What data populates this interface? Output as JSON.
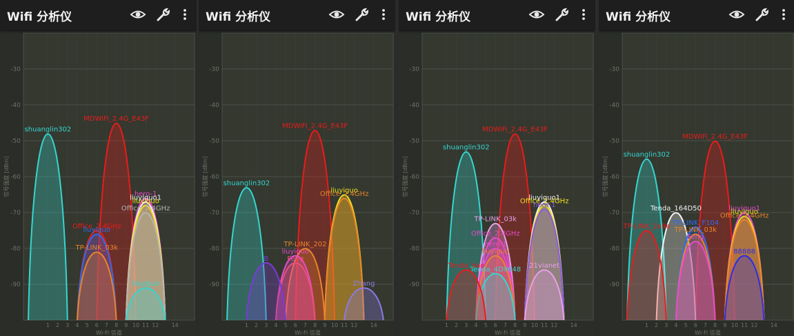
{
  "app": {
    "title": "Wifi 分析仪",
    "icons": [
      "eye-icon",
      "wrench-icon",
      "overflow-menu-icon"
    ],
    "ylabel": "信号强度 [dBm]",
    "xlabel": "Wi-Fi 信道",
    "colors": {
      "appbar": "#1d1e1d",
      "plot_bg": "#34382f",
      "grid": "#4b5048",
      "text": "#6f7369"
    }
  },
  "chart_data": [
    {
      "type": "area",
      "xlabel": "Wi-Fi 信道",
      "ylabel": "信号强度 [dBm]",
      "ylim": [
        -100,
        -20
      ],
      "yticks": [
        -30,
        -40,
        -50,
        -60,
        -70,
        -80,
        -90
      ],
      "xticks": [
        "1",
        "2",
        "3",
        "4",
        "5",
        "6",
        "7",
        "8",
        "9",
        "10",
        "11",
        "12",
        "14"
      ],
      "series": [
        {
          "name": "shuanglin302",
          "channel": 1,
          "value": -48,
          "color": "#35d6d0"
        },
        {
          "name": "MDWiFi_2.4G_E43F",
          "channel": 8,
          "value": -45,
          "color": "#e81c1c"
        },
        {
          "name": "hero-1",
          "channel": 11,
          "value": -66,
          "color": "#e84acb"
        },
        {
          "name": "liuyiguo1",
          "channel": 11,
          "value": -67,
          "color": "#f4f4f4"
        },
        {
          "name": "liuyiguo",
          "channel": 11,
          "value": -68,
          "color": "#f0e020"
        },
        {
          "name": "Office_2.4GHz",
          "channel": 11,
          "value": -70,
          "color": "#b4b4b4"
        },
        {
          "name": "Office_2.4GHz",
          "channel": 6,
          "value": -75,
          "color": "#e81c1c"
        },
        {
          "name": "liuyiguo",
          "channel": 6,
          "value": -76,
          "color": "#2d6cf0"
        },
        {
          "name": "TP-LINK_03k",
          "channel": 6,
          "value": -81,
          "color": "#e8842a"
        },
        {
          "name": "liuyiguo",
          "channel": 11,
          "value": -91,
          "color": "#35d6d0"
        }
      ]
    },
    {
      "type": "area",
      "xlabel": "Wi-Fi 信道",
      "ylabel": "信号强度 [dBm]",
      "ylim": [
        -100,
        -20
      ],
      "yticks": [
        -30,
        -40,
        -50,
        -60,
        -70,
        -80,
        -90
      ],
      "xticks": [
        "1",
        "2",
        "3",
        "4",
        "5",
        "6",
        "7",
        "8",
        "9",
        "10",
        "11",
        "12",
        "14"
      ],
      "series": [
        {
          "name": "MDWiFi_2.4G_E43F",
          "channel": 8,
          "value": -47,
          "color": "#e81c1c"
        },
        {
          "name": "shuanglin302",
          "channel": 1,
          "value": -63,
          "color": "#35d6d0"
        },
        {
          "name": "liuyiguo",
          "channel": 11,
          "value": -65,
          "color": "#f0e020"
        },
        {
          "name": "Office_2.4GHz",
          "channel": 11,
          "value": -66,
          "color": "#e8842a"
        },
        {
          "name": "TP-LINK_202",
          "channel": 7,
          "value": -80,
          "color": "#e8842a"
        },
        {
          "name": "liuyiguo",
          "channel": 6,
          "value": -82,
          "color": "#e84acb"
        },
        {
          "name": "Feng",
          "channel": 6,
          "value": -84,
          "color": "#e8507a"
        },
        {
          "name": "B",
          "channel": 3,
          "value": -84,
          "color": "#7a3ad8"
        },
        {
          "name": "Zhang",
          "channel": 13,
          "value": -91,
          "color": "#8a7ae8"
        }
      ]
    },
    {
      "type": "area",
      "xlabel": "Wi-Fi 信道",
      "ylabel": "信号强度 [dBm]",
      "ylim": [
        -100,
        -20
      ],
      "yticks": [
        -30,
        -40,
        -50,
        -60,
        -70,
        -80,
        -90
      ],
      "xticks": [
        "1",
        "2",
        "3",
        "4",
        "5",
        "6",
        "7",
        "8",
        "9",
        "10",
        "11",
        "12",
        "14"
      ],
      "series": [
        {
          "name": "MDWiFi_2.4G_E43F",
          "channel": 8,
          "value": -48,
          "color": "#e81c1c"
        },
        {
          "name": "shuanglin302",
          "channel": 3,
          "value": -53,
          "color": "#35d6d0"
        },
        {
          "name": "liuyiguo1",
          "channel": 11,
          "value": -67,
          "color": "#f4f4f4"
        },
        {
          "name": "Office_2.4GHz",
          "channel": 11,
          "value": -68,
          "color": "#f0e020"
        },
        {
          "name": "hero-1",
          "channel": 11,
          "value": -69,
          "color": "#8a5ae8"
        },
        {
          "name": "TP-LINK_03k",
          "channel": 6,
          "value": -73,
          "color": "#e8a0e8"
        },
        {
          "name": "Office_2.4GHz",
          "channel": 6,
          "value": -77,
          "color": "#e84acb"
        },
        {
          "name": "hero-1",
          "channel": 6,
          "value": -80,
          "color": "#e84acb"
        },
        {
          "name": "liuyiguo",
          "channel": 6,
          "value": -82,
          "color": "#e8842a"
        },
        {
          "name": "Tenda_4D9648",
          "channel": 6,
          "value": -87,
          "color": "#35d6d0"
        },
        {
          "name": "Tenda_hao",
          "channel": 3,
          "value": -86,
          "color": "#e81c1c"
        },
        {
          "name": "21vianet",
          "channel": 11,
          "value": -86,
          "color": "#e8a0e8"
        }
      ]
    },
    {
      "type": "area",
      "xlabel": "Wi-Fi 信道",
      "ylabel": "信号强度 [dBm]",
      "ylim": [
        -100,
        -20
      ],
      "yticks": [
        -30,
        -40,
        -50,
        -60,
        -70,
        -80,
        -90
      ],
      "xticks": [
        "1",
        "2",
        "3",
        "4",
        "5",
        "6",
        "7",
        "8",
        "9",
        "10",
        "11",
        "12",
        "14"
      ],
      "series": [
        {
          "name": "MDWiFi_2.4G_E43F",
          "channel": 8,
          "value": -50,
          "color": "#e81c1c"
        },
        {
          "name": "shuanglin302",
          "channel": 1,
          "value": -55,
          "color": "#35d6d0"
        },
        {
          "name": "Tenda_164D50",
          "channel": 4,
          "value": -70,
          "color": "#f4f4f4"
        },
        {
          "name": "liuyiguo1",
          "channel": 11,
          "value": -70,
          "color": "#e84acb"
        },
        {
          "name": "liuyiguo",
          "channel": 11,
          "value": -71,
          "color": "#f0e020"
        },
        {
          "name": "Office_2.4GHz",
          "channel": 11,
          "value": -72,
          "color": "#e8842a"
        },
        {
          "name": "TP-LINK_F104",
          "channel": 6,
          "value": -74,
          "color": "#2d6cf0"
        },
        {
          "name": "TP-LINK_03k",
          "channel": 6,
          "value": -76,
          "color": "#e8842a"
        },
        {
          "name": "TP-LINK_2a9e",
          "channel": 1,
          "value": -75,
          "color": "#e81c1c"
        },
        {
          "name": "Feng",
          "channel": 6,
          "value": -78,
          "color": "#e84acb"
        },
        {
          "name": "88888",
          "channel": 11,
          "value": -82,
          "color": "#2d2de8"
        }
      ]
    }
  ]
}
